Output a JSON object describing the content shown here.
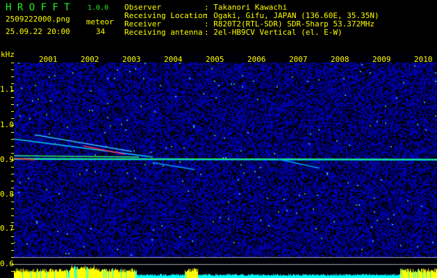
{
  "header": {
    "app_name": "H R O F F T",
    "version": "1.0.0",
    "filename": "2509222000.png",
    "datetime": "25.09.22 20:00",
    "meteor_label": "meteor",
    "meteor_count": "34",
    "info": [
      {
        "label": "Observer",
        "value": ": Takanori Kawachi"
      },
      {
        "label": "Receiving Location",
        "value": ": Ogaki, Gifu, JAPAN (136.60E, 35.35N)"
      },
      {
        "label": "Receiver",
        "value": ": R820T2(RTL-SDR) SDR-Sharp 53.372MHz"
      },
      {
        "label": "Receiving antenna",
        "value": ": 2el-HB9CV Vertical (el. E-W)"
      }
    ]
  },
  "spectrogram": {
    "y_unit": "kHz",
    "y_ticks": [
      "1.1",
      "1.0",
      "0.9",
      "0.8",
      "0.7",
      "0.6"
    ],
    "x_ticks": [
      "2001",
      "2002",
      "2003",
      "2004",
      "2005",
      "2006",
      "2007",
      "2008",
      "2009",
      "2010"
    ],
    "colors": {
      "background": "#000010",
      "noise": "#1a1acc",
      "signal": "#00ffff",
      "level_high": "#ffff00",
      "level_low": "#00ffff",
      "text": "#ffff00",
      "title": "#22ee22"
    }
  }
}
